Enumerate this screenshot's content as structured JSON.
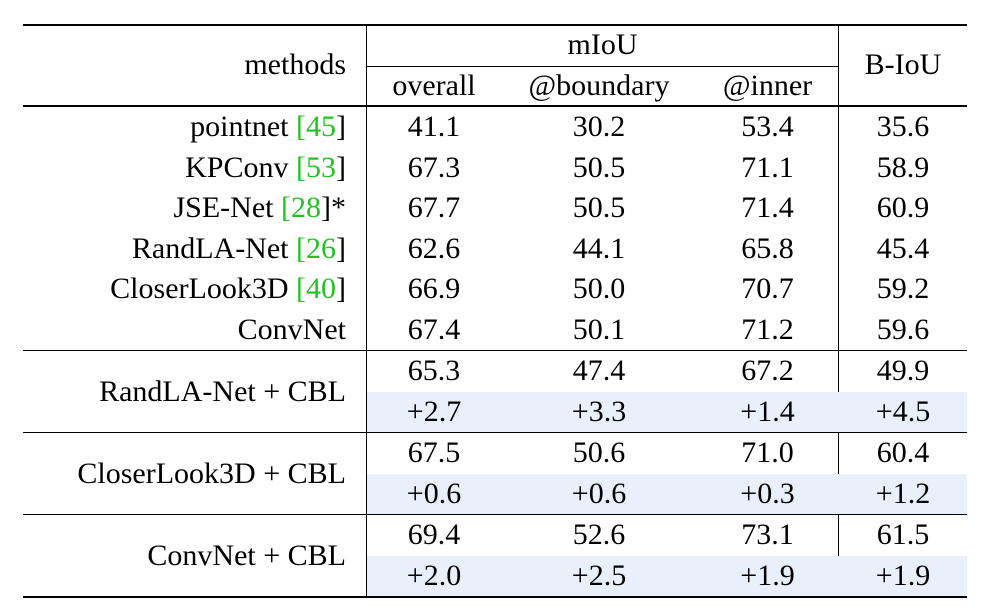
{
  "header": {
    "methods": "methods",
    "miou": "mIoU",
    "overall": "overall",
    "boundary": "@boundary",
    "inner": "@inner",
    "biou": "B-IoU"
  },
  "baselines": [
    {
      "name": "pointnet",
      "cite": "45",
      "suffix": "",
      "values": [
        "41.1",
        "30.2",
        "53.4",
        "35.6"
      ]
    },
    {
      "name": "KPConv",
      "cite": "53",
      "suffix": "",
      "values": [
        "67.3",
        "50.5",
        "71.1",
        "58.9"
      ]
    },
    {
      "name": "JSE-Net",
      "cite": "28",
      "suffix": "*",
      "values": [
        "67.7",
        "50.5",
        "71.4",
        "60.9"
      ]
    },
    {
      "name": "RandLA-Net",
      "cite": "26",
      "suffix": "",
      "values": [
        "62.6",
        "44.1",
        "65.8",
        "45.4"
      ]
    },
    {
      "name": "CloserLook3D",
      "cite": "40",
      "suffix": "",
      "values": [
        "66.9",
        "50.0",
        "70.7",
        "59.2"
      ]
    },
    {
      "name": "ConvNet",
      "cite": "",
      "suffix": "",
      "values": [
        "67.4",
        "50.1",
        "71.2",
        "59.6"
      ]
    }
  ],
  "cbl": [
    {
      "name": "RandLA-Net + CBL",
      "values": [
        "65.3",
        "47.4",
        "67.2",
        "49.9"
      ],
      "deltas": [
        "+2.7",
        "+3.3",
        "+1.4",
        "+4.5"
      ]
    },
    {
      "name": "CloserLook3D + CBL",
      "values": [
        "67.5",
        "50.6",
        "71.0",
        "60.4"
      ],
      "deltas": [
        "+0.6",
        "+0.6",
        "+0.3",
        "+1.2"
      ]
    },
    {
      "name": "ConvNet + CBL",
      "values": [
        "69.4",
        "52.6",
        "73.1",
        "61.5"
      ],
      "deltas": [
        "+2.0",
        "+2.5",
        "+1.9",
        "+1.9"
      ]
    }
  ],
  "colors": {
    "citation": "#22c322",
    "delta_highlight": "#e8f0fb",
    "rule": "#000000"
  }
}
